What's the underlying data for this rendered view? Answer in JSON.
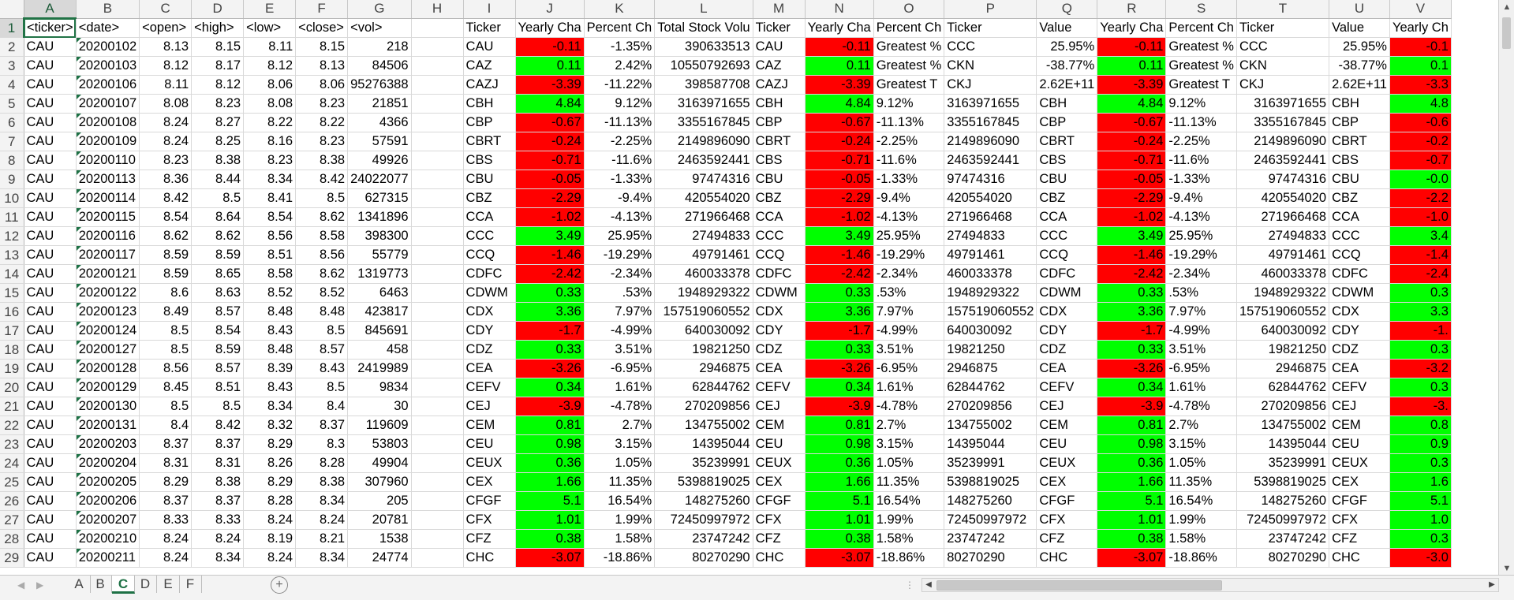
{
  "sheet": {
    "columns": [
      "A",
      "B",
      "C",
      "D",
      "E",
      "F",
      "G",
      "H",
      "I",
      "J",
      "K",
      "L",
      "M",
      "N",
      "O",
      "P",
      "Q",
      "R",
      "S",
      "T",
      "U",
      "V"
    ],
    "row_numbers": [
      1,
      2,
      3,
      4,
      5,
      6,
      7,
      8,
      9,
      10,
      11,
      12,
      13,
      14,
      15,
      16,
      17,
      18,
      19,
      20,
      21,
      22,
      23,
      24,
      25,
      26,
      27,
      28,
      29
    ],
    "rows": [
      [
        "<ticker>",
        "<date>",
        "<open>",
        "<high>",
        "<low>",
        "<close>",
        "<vol>",
        "",
        "Ticker",
        "Yearly Cha",
        "Percent Ch",
        "Total Stock Volu",
        "Ticker",
        "Yearly Cha",
        "Percent Ch",
        "Ticker",
        "Value",
        "Yearly Cha",
        "Percent Ch",
        "Ticker",
        "Value",
        "Yearly Ch"
      ],
      [
        "CAU",
        "20200102",
        "8.13",
        "8.15",
        "8.11",
        "8.15",
        "218",
        "",
        "CAU",
        "-0.11",
        "-1.35%",
        "390633513",
        "CAU",
        "-0.11",
        "Greatest %",
        "CCC",
        "25.95%",
        "-0.11",
        "Greatest %",
        "CCC",
        "25.95%",
        "-0.1"
      ],
      [
        "CAU",
        "20200103",
        "8.12",
        "8.17",
        "8.12",
        "8.13",
        "84506",
        "",
        "CAZ",
        "0.11",
        "2.42%",
        "10550792693",
        "CAZ",
        "0.11",
        "Greatest %",
        "CKN",
        "-38.77%",
        "0.11",
        "Greatest %",
        "CKN",
        "-38.77%",
        "0.1"
      ],
      [
        "CAU",
        "20200106",
        "8.11",
        "8.12",
        "8.06",
        "8.06",
        "95276388",
        "",
        "CAZJ",
        "-3.39",
        "-11.22%",
        "398587708",
        "CAZJ",
        "-3.39",
        "Greatest T",
        "CKJ",
        "2.62E+11",
        "-3.39",
        "Greatest T",
        "CKJ",
        "2.62E+11",
        "-3.3"
      ],
      [
        "CAU",
        "20200107",
        "8.08",
        "8.23",
        "8.08",
        "8.23",
        "21851",
        "",
        "CBH",
        "4.84",
        "9.12%",
        "3163971655",
        "CBH",
        "4.84",
        "9.12%",
        "3163971655",
        "CBH",
        "4.84",
        "9.12%",
        "3163971655",
        "CBH",
        "4.8"
      ],
      [
        "CAU",
        "20200108",
        "8.24",
        "8.27",
        "8.22",
        "8.22",
        "4366",
        "",
        "CBP",
        "-0.67",
        "-11.13%",
        "3355167845",
        "CBP",
        "-0.67",
        "-11.13%",
        "3355167845",
        "CBP",
        "-0.67",
        "-11.13%",
        "3355167845",
        "CBP",
        "-0.6"
      ],
      [
        "CAU",
        "20200109",
        "8.24",
        "8.25",
        "8.16",
        "8.23",
        "57591",
        "",
        "CBRT",
        "-0.24",
        "-2.25%",
        "2149896090",
        "CBRT",
        "-0.24",
        "-2.25%",
        "2149896090",
        "CBRT",
        "-0.24",
        "-2.25%",
        "2149896090",
        "CBRT",
        "-0.2"
      ],
      [
        "CAU",
        "20200110",
        "8.23",
        "8.38",
        "8.23",
        "8.38",
        "49926",
        "",
        "CBS",
        "-0.71",
        "-11.6%",
        "2463592441",
        "CBS",
        "-0.71",
        "-11.6%",
        "2463592441",
        "CBS",
        "-0.71",
        "-11.6%",
        "2463592441",
        "CBS",
        "-0.7"
      ],
      [
        "CAU",
        "20200113",
        "8.36",
        "8.44",
        "8.34",
        "8.42",
        "24022077",
        "",
        "CBU",
        "-0.05",
        "-1.33%",
        "97474316",
        "CBU",
        "-0.05",
        "-1.33%",
        "97474316",
        "CBU",
        "-0.05",
        "-1.33%",
        "97474316",
        "CBU",
        "-0.0"
      ],
      [
        "CAU",
        "20200114",
        "8.42",
        "8.5",
        "8.41",
        "8.5",
        "627315",
        "",
        "CBZ",
        "-2.29",
        "-9.4%",
        "420554020",
        "CBZ",
        "-2.29",
        "-9.4%",
        "420554020",
        "CBZ",
        "-2.29",
        "-9.4%",
        "420554020",
        "CBZ",
        "-2.2"
      ],
      [
        "CAU",
        "20200115",
        "8.54",
        "8.64",
        "8.54",
        "8.62",
        "1341896",
        "",
        "CCA",
        "-1.02",
        "-4.13%",
        "271966468",
        "CCA",
        "-1.02",
        "-4.13%",
        "271966468",
        "CCA",
        "-1.02",
        "-4.13%",
        "271966468",
        "CCA",
        "-1.0"
      ],
      [
        "CAU",
        "20200116",
        "8.62",
        "8.62",
        "8.56",
        "8.58",
        "398300",
        "",
        "CCC",
        "3.49",
        "25.95%",
        "27494833",
        "CCC",
        "3.49",
        "25.95%",
        "27494833",
        "CCC",
        "3.49",
        "25.95%",
        "27494833",
        "CCC",
        "3.4"
      ],
      [
        "CAU",
        "20200117",
        "8.59",
        "8.59",
        "8.51",
        "8.56",
        "55779",
        "",
        "CCQ",
        "-1.46",
        "-19.29%",
        "49791461",
        "CCQ",
        "-1.46",
        "-19.29%",
        "49791461",
        "CCQ",
        "-1.46",
        "-19.29%",
        "49791461",
        "CCQ",
        "-1.4"
      ],
      [
        "CAU",
        "20200121",
        "8.59",
        "8.65",
        "8.58",
        "8.62",
        "1319773",
        "",
        "CDFC",
        "-2.42",
        "-2.34%",
        "460033378",
        "CDFC",
        "-2.42",
        "-2.34%",
        "460033378",
        "CDFC",
        "-2.42",
        "-2.34%",
        "460033378",
        "CDFC",
        "-2.4"
      ],
      [
        "CAU",
        "20200122",
        "8.6",
        "8.63",
        "8.52",
        "8.52",
        "6463",
        "",
        "CDWM",
        "0.33",
        ".53%",
        "1948929322",
        "CDWM",
        "0.33",
        ".53%",
        "1948929322",
        "CDWM",
        "0.33",
        ".53%",
        "1948929322",
        "CDWM",
        "0.3"
      ],
      [
        "CAU",
        "20200123",
        "8.49",
        "8.57",
        "8.48",
        "8.48",
        "423817",
        "",
        "CDX",
        "3.36",
        "7.97%",
        "157519060552",
        "CDX",
        "3.36",
        "7.97%",
        "157519060552",
        "CDX",
        "3.36",
        "7.97%",
        "157519060552",
        "CDX",
        "3.3"
      ],
      [
        "CAU",
        "20200124",
        "8.5",
        "8.54",
        "8.43",
        "8.5",
        "845691",
        "",
        "CDY",
        "-1.7",
        "-4.99%",
        "640030092",
        "CDY",
        "-1.7",
        "-4.99%",
        "640030092",
        "CDY",
        "-1.7",
        "-4.99%",
        "640030092",
        "CDY",
        "-1."
      ],
      [
        "CAU",
        "20200127",
        "8.5",
        "8.59",
        "8.48",
        "8.57",
        "458",
        "",
        "CDZ",
        "0.33",
        "3.51%",
        "19821250",
        "CDZ",
        "0.33",
        "3.51%",
        "19821250",
        "CDZ",
        "0.33",
        "3.51%",
        "19821250",
        "CDZ",
        "0.3"
      ],
      [
        "CAU",
        "20200128",
        "8.56",
        "8.57",
        "8.39",
        "8.43",
        "2419989",
        "",
        "CEA",
        "-3.26",
        "-6.95%",
        "2946875",
        "CEA",
        "-3.26",
        "-6.95%",
        "2946875",
        "CEA",
        "-3.26",
        "-6.95%",
        "2946875",
        "CEA",
        "-3.2"
      ],
      [
        "CAU",
        "20200129",
        "8.45",
        "8.51",
        "8.43",
        "8.5",
        "9834",
        "",
        "CEFV",
        "0.34",
        "1.61%",
        "62844762",
        "CEFV",
        "0.34",
        "1.61%",
        "62844762",
        "CEFV",
        "0.34",
        "1.61%",
        "62844762",
        "CEFV",
        "0.3"
      ],
      [
        "CAU",
        "20200130",
        "8.5",
        "8.5",
        "8.34",
        "8.4",
        "30",
        "",
        "CEJ",
        "-3.9",
        "-4.78%",
        "270209856",
        "CEJ",
        "-3.9",
        "-4.78%",
        "270209856",
        "CEJ",
        "-3.9",
        "-4.78%",
        "270209856",
        "CEJ",
        "-3."
      ],
      [
        "CAU",
        "20200131",
        "8.4",
        "8.42",
        "8.32",
        "8.37",
        "119609",
        "",
        "CEM",
        "0.81",
        "2.7%",
        "134755002",
        "CEM",
        "0.81",
        "2.7%",
        "134755002",
        "CEM",
        "0.81",
        "2.7%",
        "134755002",
        "CEM",
        "0.8"
      ],
      [
        "CAU",
        "20200203",
        "8.37",
        "8.37",
        "8.29",
        "8.3",
        "53803",
        "",
        "CEU",
        "0.98",
        "3.15%",
        "14395044",
        "CEU",
        "0.98",
        "3.15%",
        "14395044",
        "CEU",
        "0.98",
        "3.15%",
        "14395044",
        "CEU",
        "0.9"
      ],
      [
        "CAU",
        "20200204",
        "8.31",
        "8.31",
        "8.26",
        "8.28",
        "49904",
        "",
        "CEUX",
        "0.36",
        "1.05%",
        "35239991",
        "CEUX",
        "0.36",
        "1.05%",
        "35239991",
        "CEUX",
        "0.36",
        "1.05%",
        "35239991",
        "CEUX",
        "0.3"
      ],
      [
        "CAU",
        "20200205",
        "8.29",
        "8.38",
        "8.29",
        "8.38",
        "307960",
        "",
        "CEX",
        "1.66",
        "11.35%",
        "5398819025",
        "CEX",
        "1.66",
        "11.35%",
        "5398819025",
        "CEX",
        "1.66",
        "11.35%",
        "5398819025",
        "CEX",
        "1.6"
      ],
      [
        "CAU",
        "20200206",
        "8.37",
        "8.37",
        "8.28",
        "8.34",
        "205",
        "",
        "CFGF",
        "5.1",
        "16.54%",
        "148275260",
        "CFGF",
        "5.1",
        "16.54%",
        "148275260",
        "CFGF",
        "5.1",
        "16.54%",
        "148275260",
        "CFGF",
        "5.1"
      ],
      [
        "CAU",
        "20200207",
        "8.33",
        "8.33",
        "8.24",
        "8.24",
        "20781",
        "",
        "CFX",
        "1.01",
        "1.99%",
        "72450997972",
        "CFX",
        "1.01",
        "1.99%",
        "72450997972",
        "CFX",
        "1.01",
        "1.99%",
        "72450997972",
        "CFX",
        "1.0"
      ],
      [
        "CAU",
        "20200210",
        "8.24",
        "8.24",
        "8.19",
        "8.21",
        "1538",
        "",
        "CFZ",
        "0.38",
        "1.58%",
        "23747242",
        "CFZ",
        "0.38",
        "1.58%",
        "23747242",
        "CFZ",
        "0.38",
        "1.58%",
        "23747242",
        "CFZ",
        "0.3"
      ],
      [
        "CAU",
        "20200211",
        "8.24",
        "8.34",
        "8.24",
        "8.34",
        "24774",
        "",
        "CHC",
        "-3.07",
        "-18.86%",
        "80270290",
        "CHC",
        "-3.07",
        "-18.86%",
        "80270290",
        "CHC",
        "-3.07",
        "-18.86%",
        "80270290",
        "CHC",
        "-3.0"
      ]
    ]
  },
  "tabs": [
    "A",
    "B",
    "C",
    "D",
    "E",
    "F"
  ],
  "active_tab": "C",
  "active_cell": "A1",
  "colors": {
    "negative_fill": "#ff0000",
    "positive_fill": "#00ff00",
    "accent": "#217346"
  },
  "icons": {
    "add_sheet": "plus-icon",
    "scroll_left": "arrow-left-icon",
    "scroll_right": "arrow-right-icon",
    "scroll_up": "arrow-up-icon",
    "scroll_down": "arrow-down-icon"
  },
  "glyphs": {
    "add_sheet": "+",
    "scroll_left": "◀",
    "scroll_right": "▶",
    "scroll_up": "▲",
    "scroll_down": "▼",
    "prev_tab": "◀",
    "next_tab": "▶",
    "split": "⋮"
  }
}
